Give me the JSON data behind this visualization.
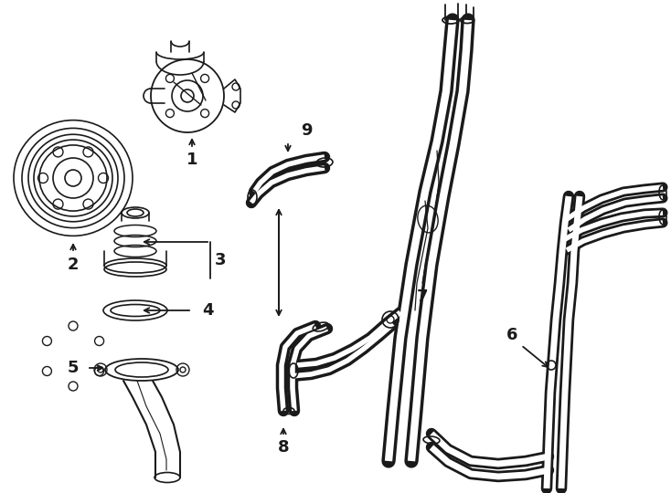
{
  "bg_color": "#ffffff",
  "line_color": "#1a1a1a",
  "lw": 1.3,
  "hose_lw": 8.0,
  "hose_color": "#1a1a1a",
  "label_fontsize": 12
}
